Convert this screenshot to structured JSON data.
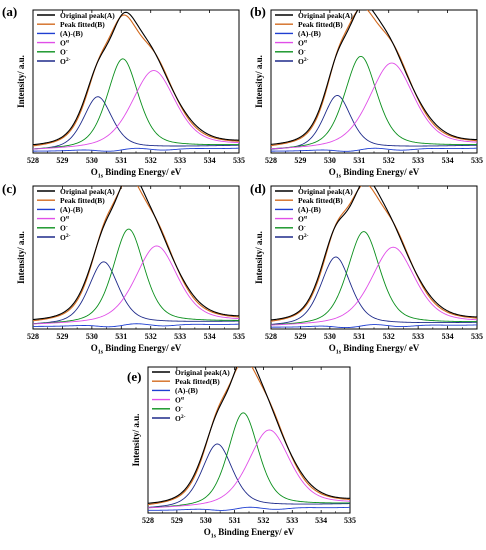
{
  "chart_data": [
    {
      "type": "line",
      "panel_label": "(a)",
      "xlabel_main": "O",
      "xlabel_sub": "1s",
      "xlabel_rest": " Binding Energy/ eV",
      "ylabel": "Intensity/ a.u.",
      "xlim": [
        528,
        535
      ],
      "ylim": [
        0,
        1.15
      ],
      "xticks": [
        "528",
        "529",
        "530",
        "531",
        "532",
        "533",
        "534",
        "535"
      ],
      "legend_position": "top-left",
      "peaks": {
        "O_alpha": {
          "center": 532.1,
          "fwhm": 1.75,
          "height": 0.62
        },
        "O_minus": {
          "center": 531.05,
          "fwhm": 1.25,
          "height": 0.72
        },
        "O_2minus": {
          "center": 530.2,
          "fwhm": 1.15,
          "height": 0.42
        }
      },
      "baseline": [
        0.02,
        0.06
      ],
      "series": [
        {
          "name": "Original peak(A)",
          "color": "#000000",
          "kind": "original"
        },
        {
          "name": "Peak fitted(B)",
          "color": "#d2691e",
          "kind": "sum"
        },
        {
          "name": "(A)-(B)",
          "color": "#1f3fd1",
          "kind": "residual"
        },
        {
          "name": "O",
          "sup": "α",
          "color": "#e04ee8",
          "kind": "O_alpha"
        },
        {
          "name": "O",
          "sup": "-",
          "color": "#0a8f1c",
          "kind": "O_minus"
        },
        {
          "name": "O",
          "sup": "2-",
          "color": "#1e2a8a",
          "kind": "O_2minus"
        }
      ]
    },
    {
      "type": "line",
      "panel_label": "(b)",
      "xlabel_main": "O",
      "xlabel_sub": "1s",
      "xlabel_rest": " Binding Energy/ eV",
      "ylabel": "Intensity/ a.u.",
      "xlim": [
        528,
        535
      ],
      "ylim": [
        0,
        1.15
      ],
      "xticks": [
        "528",
        "529",
        "530",
        "531",
        "532",
        "533",
        "534",
        "535"
      ],
      "legend_position": "top-left",
      "peaks": {
        "O_alpha": {
          "center": 532.1,
          "fwhm": 1.8,
          "height": 0.68
        },
        "O_minus": {
          "center": 531.05,
          "fwhm": 1.3,
          "height": 0.74
        },
        "O_2minus": {
          "center": 530.25,
          "fwhm": 1.1,
          "height": 0.43
        }
      },
      "baseline": [
        0.02,
        0.06
      ],
      "series": [
        {
          "name": "Original peak(A)",
          "color": "#000000",
          "kind": "original"
        },
        {
          "name": "Peak fitted(B)",
          "color": "#d2691e",
          "kind": "sum"
        },
        {
          "name": "(A)-(B)",
          "color": "#1f3fd1",
          "kind": "residual"
        },
        {
          "name": "O",
          "sup": "α",
          "color": "#e04ee8",
          "kind": "O_alpha"
        },
        {
          "name": "O",
          "sup": "-",
          "color": "#0a8f1c",
          "kind": "O_minus"
        },
        {
          "name": "O",
          "sup": "2-",
          "color": "#1e2a8a",
          "kind": "O_2minus"
        }
      ]
    },
    {
      "type": "line",
      "panel_label": "(c)",
      "xlabel_main": "O",
      "xlabel_sub": "1s",
      "xlabel_rest": " Binding Energy/ eV",
      "ylabel": "Intensity/ a.u.",
      "xlim": [
        528,
        535
      ],
      "ylim": [
        0,
        1.15
      ],
      "xticks": [
        "528",
        "529",
        "530",
        "531",
        "532",
        "533",
        "534",
        "535"
      ],
      "legend_position": "top-left",
      "peaks": {
        "O_alpha": {
          "center": 532.2,
          "fwhm": 1.7,
          "height": 0.62
        },
        "O_minus": {
          "center": 531.25,
          "fwhm": 1.25,
          "height": 0.76
        },
        "O_2minus": {
          "center": 530.4,
          "fwhm": 1.2,
          "height": 0.5
        }
      },
      "baseline": [
        0.03,
        0.06
      ],
      "series": [
        {
          "name": "Original peak(A)",
          "color": "#000000",
          "kind": "original"
        },
        {
          "name": "Peak fitted(B)",
          "color": "#d2691e",
          "kind": "sum"
        },
        {
          "name": "(A)-(B)",
          "color": "#1f3fd1",
          "kind": "residual"
        },
        {
          "name": "O",
          "sup": "α",
          "color": "#e04ee8",
          "kind": "O_alpha"
        },
        {
          "name": "O",
          "sup": "-",
          "color": "#0a8f1c",
          "kind": "O_minus"
        },
        {
          "name": "O",
          "sup": "2-",
          "color": "#1e2a8a",
          "kind": "O_2minus"
        }
      ]
    },
    {
      "type": "line",
      "panel_label": "(d)",
      "xlabel_main": "O",
      "xlabel_sub": "1s",
      "xlabel_rest": " Binding Energy/ eV",
      "ylabel": "Intensity/ a.u.",
      "xlim": [
        528,
        535
      ],
      "ylim": [
        0,
        1.15
      ],
      "xticks": [
        "528",
        "529",
        "530",
        "531",
        "532",
        "533",
        "534",
        "535"
      ],
      "legend_position": "top-left",
      "peaks": {
        "O_alpha": {
          "center": 532.15,
          "fwhm": 1.75,
          "height": 0.62
        },
        "O_minus": {
          "center": 531.15,
          "fwhm": 1.3,
          "height": 0.75
        },
        "O_2minus": {
          "center": 530.2,
          "fwhm": 1.2,
          "height": 0.55
        }
      },
      "baseline": [
        0.02,
        0.05
      ],
      "series": [
        {
          "name": "Original peak(A)",
          "color": "#000000",
          "kind": "original"
        },
        {
          "name": "Peak fitted(B)",
          "color": "#d2691e",
          "kind": "sum"
        },
        {
          "name": "(A)-(B)",
          "color": "#1f3fd1",
          "kind": "residual"
        },
        {
          "name": "O",
          "sup": "α",
          "color": "#e04ee8",
          "kind": "O_alpha"
        },
        {
          "name": "O",
          "sup": "-",
          "color": "#0a8f1c",
          "kind": "O_minus"
        },
        {
          "name": "O",
          "sup": "2-",
          "color": "#1e2a8a",
          "kind": "O_2minus"
        }
      ]
    },
    {
      "type": "line",
      "panel_label": "(e)",
      "xlabel_main": "O",
      "xlabel_sub": "1s",
      "xlabel_rest": " Binding Energy/ eV",
      "ylabel": "Intensity/ a.u.",
      "xlim": [
        528,
        535
      ],
      "ylim": [
        0,
        1.15
      ],
      "xticks": [
        "528",
        "529",
        "530",
        "531",
        "532",
        "533",
        "534",
        "535"
      ],
      "legend_position": "top-left",
      "peaks": {
        "O_alpha": {
          "center": 532.2,
          "fwhm": 1.7,
          "height": 0.6
        },
        "O_minus": {
          "center": 531.3,
          "fwhm": 1.25,
          "height": 0.74
        },
        "O_2minus": {
          "center": 530.4,
          "fwhm": 1.25,
          "height": 0.5
        }
      },
      "baseline": [
        0.03,
        0.07
      ],
      "series": [
        {
          "name": "Original peak(A)",
          "color": "#000000",
          "kind": "original"
        },
        {
          "name": "Peak fitted(B)",
          "color": "#d2691e",
          "kind": "sum"
        },
        {
          "name": "(A)-(B)",
          "color": "#1f3fd1",
          "kind": "residual"
        },
        {
          "name": "O",
          "sup": "α",
          "color": "#e04ee8",
          "kind": "O_alpha"
        },
        {
          "name": "O",
          "sup": "-",
          "color": "#0a8f1c",
          "kind": "O_minus"
        },
        {
          "name": "O",
          "sup": "2-",
          "color": "#1e2a8a",
          "kind": "O_2minus"
        }
      ]
    }
  ]
}
